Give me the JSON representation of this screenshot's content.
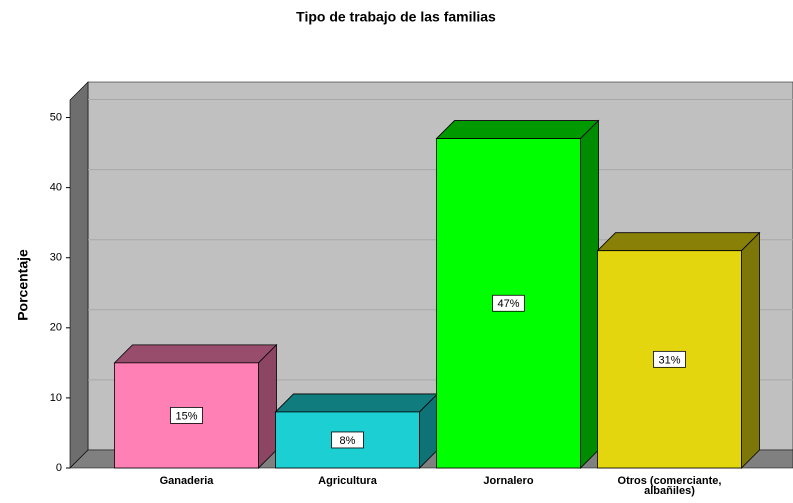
{
  "chart_data": {
    "type": "bar",
    "title": "Tipo de trabajo de las familias",
    "y_label": "Porcentaje",
    "categories": [
      "Ganaderia",
      "Agricultura",
      "Jornalero",
      "Otros (comerciante, albañiles)"
    ],
    "values": [
      15,
      8,
      47,
      31
    ],
    "value_labels": [
      "15%",
      "8%",
      "47%",
      "31%"
    ],
    "colors": [
      "#ff80b4",
      "#1ccfd2",
      "#00ff00",
      "#e4d60e"
    ],
    "ylim": [
      0,
      52.5
    ],
    "yticks": [
      0,
      10,
      20,
      30,
      40,
      50
    ],
    "grid": true
  }
}
